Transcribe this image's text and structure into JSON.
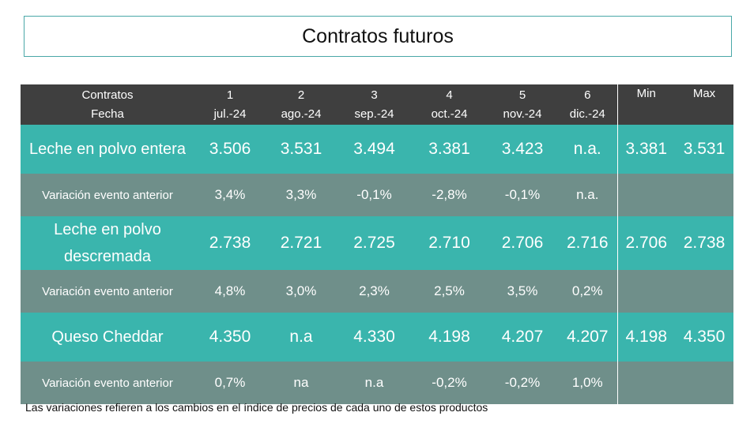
{
  "title": "Contratos futuros",
  "header": {
    "label_line1": "Contratos",
    "label_line2": "Fecha",
    "contracts": [
      {
        "num": "1",
        "date": "jul.-24"
      },
      {
        "num": "2",
        "date": "ago.-24"
      },
      {
        "num": "3",
        "date": "sep.-24"
      },
      {
        "num": "4",
        "date": "oct.-24"
      },
      {
        "num": "5",
        "date": "nov.-24"
      },
      {
        "num": "6",
        "date": "dic.-24"
      }
    ],
    "min_label": "Min",
    "max_label": "Max"
  },
  "rows": [
    {
      "product": "Leche en polvo entera",
      "values": [
        "3.506",
        "3.531",
        "3.494",
        "3.381",
        "3.423",
        "n.a."
      ],
      "min": "3.381",
      "max": "3.531",
      "variation_label": "Variación evento anterior",
      "variation": [
        "3,4%",
        "3,3%",
        "-0,1%",
        "-2,8%",
        "-0,1%",
        "n.a."
      ]
    },
    {
      "product": "Leche en polvo descremada",
      "values": [
        "2.738",
        "2.721",
        "2.725",
        "2.710",
        "2.706",
        "2.716"
      ],
      "min": "2.706",
      "max": "2.738",
      "variation_label": "Variación evento anterior",
      "variation": [
        "4,8%",
        "3,0%",
        "2,3%",
        "2,5%",
        "3,5%",
        "0,2%"
      ]
    },
    {
      "product": "Queso Cheddar",
      "values": [
        "4.350",
        "n.a",
        "4.330",
        "4.198",
        "4.207",
        "4.207"
      ],
      "min": "4.198",
      "max": "4.350",
      "variation_label": "Variación evento anterior",
      "variation": [
        "0,7%",
        "na",
        "n.a",
        "-0,2%",
        "-0,2%",
        "1,0%"
      ]
    }
  ],
  "footnote": "Las variaciones refieren a los cambios en el índice de precios de cada uno de estos productos",
  "colors": {
    "header_bg": "#3f3f3f",
    "product_row_bg": "#3ab5ad",
    "variation_row_bg": "#6f8f8a",
    "title_border": "#4aa8a8"
  }
}
